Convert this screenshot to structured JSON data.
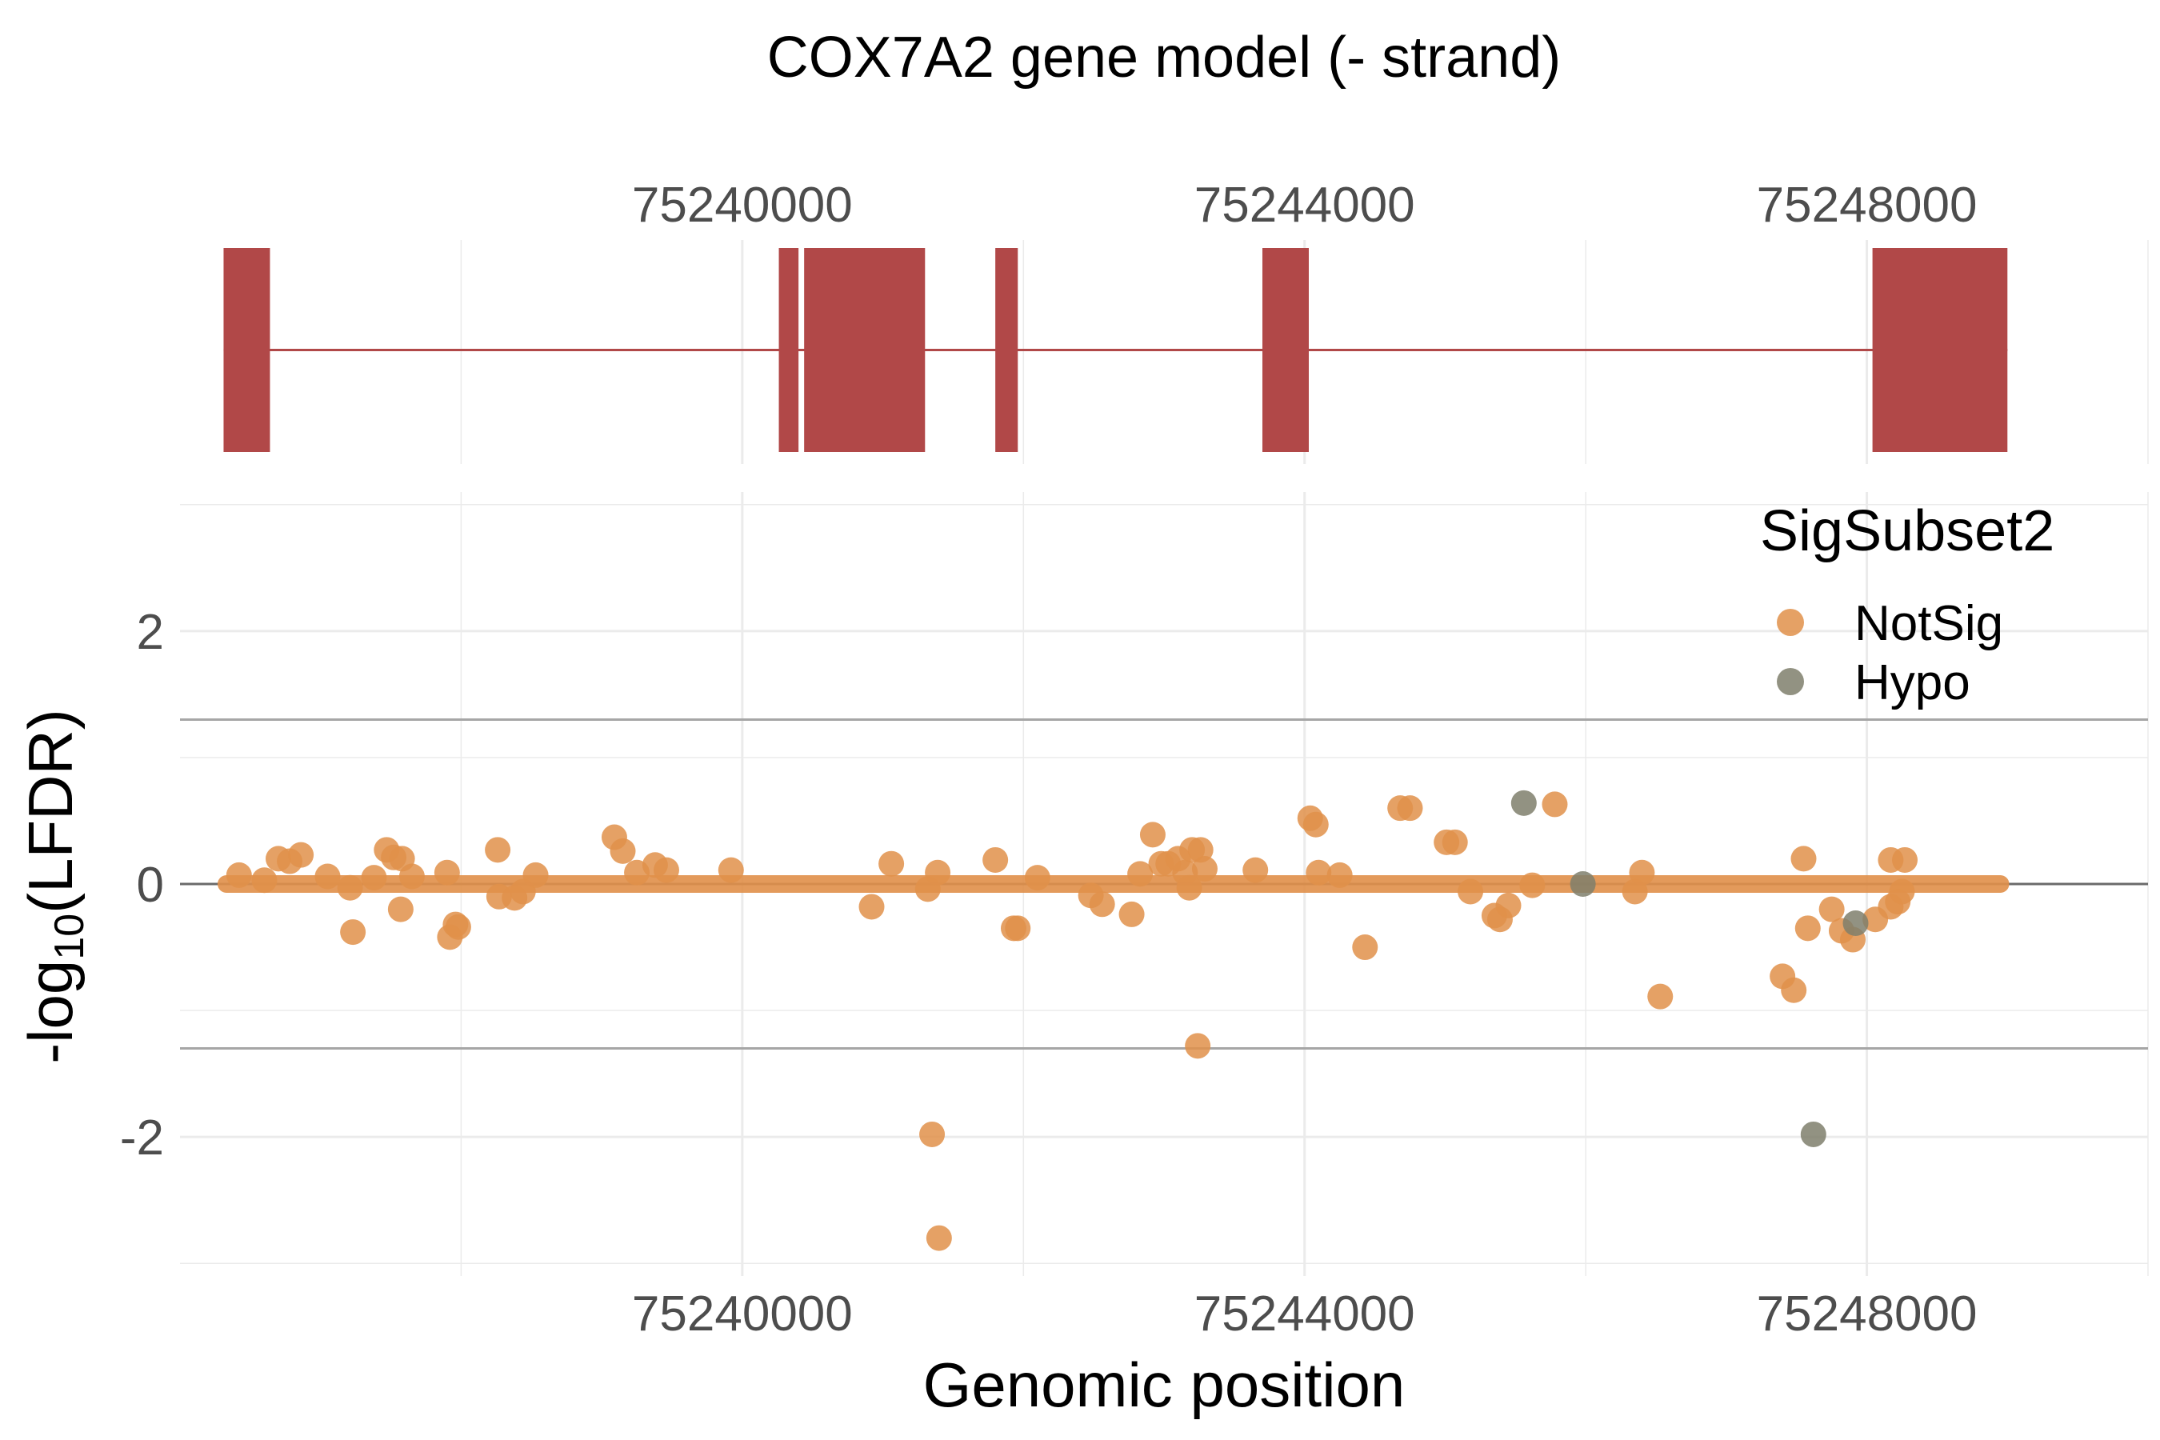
{
  "chart_data": {
    "type": "scatter",
    "title": "COX7A2 gene model (- strand)",
    "xlabel": "Genomic position",
    "ylabel": "-log10(LFDR)",
    "ylabel_parts": {
      "prefix": "-log",
      "sub": "10",
      "suffix": "(LFDR)"
    },
    "xlim": [
      75236000,
      75250000
    ],
    "ylim": [
      -3.1,
      3.1
    ],
    "x_ticks": [
      75240000,
      75244000,
      75248000
    ],
    "x_tick_labels": [
      "75240000",
      "75244000",
      "75248000"
    ],
    "y_ticks": [
      -2,
      0,
      2
    ],
    "y_tick_labels": [
      "-2",
      "0",
      "2"
    ],
    "threshold_lines": [
      1.3,
      -1.3
    ],
    "gene_model": {
      "strand": "-",
      "intron_span": [
        75236310,
        75249000
      ],
      "exons": [
        [
          75236310,
          75236640
        ],
        [
          75240260,
          75240400
        ],
        [
          75240440,
          75241300
        ],
        [
          75241800,
          75241960
        ],
        [
          75243700,
          75244030
        ],
        [
          75248040,
          75249000
        ]
      ]
    },
    "legend": {
      "title": "SigSubset2",
      "items": [
        {
          "label": "NotSig",
          "color": "#e1904a"
        },
        {
          "label": "Hypo",
          "color": "#7f7f6c"
        }
      ]
    },
    "baseline_band": {
      "x_range": [
        75236330,
        75248950
      ],
      "y": 0
    },
    "series": [
      {
        "name": "NotSig",
        "color": "#e1904a",
        "points": [
          [
            75236420,
            0.07
          ],
          [
            75236600,
            0.03
          ],
          [
            75236700,
            0.2
          ],
          [
            75236780,
            0.18
          ],
          [
            75236860,
            0.23
          ],
          [
            75237050,
            0.06
          ],
          [
            75237210,
            -0.03
          ],
          [
            75237230,
            -0.38
          ],
          [
            75237380,
            0.05
          ],
          [
            75237470,
            0.27
          ],
          [
            75237520,
            0.21
          ],
          [
            75237580,
            0.2
          ],
          [
            75237570,
            -0.2
          ],
          [
            75237650,
            0.06
          ],
          [
            75237900,
            0.09
          ],
          [
            75237920,
            -0.42
          ],
          [
            75237960,
            -0.32
          ],
          [
            75237980,
            -0.34
          ],
          [
            75238260,
            0.27
          ],
          [
            75238270,
            -0.1
          ],
          [
            75238380,
            -0.11
          ],
          [
            75238440,
            -0.06
          ],
          [
            75238530,
            0.07
          ],
          [
            75239090,
            0.37
          ],
          [
            75239150,
            0.26
          ],
          [
            75239250,
            0.09
          ],
          [
            75239380,
            0.15
          ],
          [
            75239460,
            0.11
          ],
          [
            75239920,
            0.11
          ],
          [
            75240920,
            -0.18
          ],
          [
            75241060,
            0.16
          ],
          [
            75241350,
            -1.98
          ],
          [
            75241320,
            -0.04
          ],
          [
            75241390,
            0.09
          ],
          [
            75241400,
            -2.8
          ],
          [
            75241800,
            0.19
          ],
          [
            75241930,
            -0.35
          ],
          [
            75241960,
            -0.35
          ],
          [
            75242100,
            0.05
          ],
          [
            75242480,
            -0.09
          ],
          [
            75242560,
            -0.16
          ],
          [
            75242770,
            -0.24
          ],
          [
            75242830,
            0.08
          ],
          [
            75242920,
            0.39
          ],
          [
            75242980,
            0.16
          ],
          [
            75243030,
            0.16
          ],
          [
            75243100,
            0.2
          ],
          [
            75243150,
            0.09
          ],
          [
            75243180,
            -0.03
          ],
          [
            75243200,
            0.27
          ],
          [
            75243260,
            0.27
          ],
          [
            75243240,
            -1.28
          ],
          [
            75243290,
            0.12
          ],
          [
            75243650,
            0.11
          ],
          [
            75244040,
            0.52
          ],
          [
            75244080,
            0.47
          ],
          [
            75244100,
            0.09
          ],
          [
            75244250,
            0.07
          ],
          [
            75244430,
            -0.5
          ],
          [
            75244680,
            0.6
          ],
          [
            75244750,
            0.6
          ],
          [
            75245010,
            0.33
          ],
          [
            75245070,
            0.33
          ],
          [
            75245180,
            -0.06
          ],
          [
            75245350,
            -0.25
          ],
          [
            75245390,
            -0.28
          ],
          [
            75245450,
            -0.17
          ],
          [
            75245620,
            -0.01
          ],
          [
            75245780,
            0.63
          ],
          [
            75246350,
            -0.06
          ],
          [
            75246400,
            0.09
          ],
          [
            75246530,
            -0.89
          ],
          [
            75247550,
            0.2
          ],
          [
            75247400,
            -0.73
          ],
          [
            75247480,
            -0.84
          ],
          [
            75247580,
            -0.35
          ],
          [
            75247750,
            -0.2
          ],
          [
            75247820,
            -0.37
          ],
          [
            75247900,
            -0.44
          ],
          [
            75248060,
            -0.28
          ],
          [
            75248170,
            -0.18
          ],
          [
            75248220,
            -0.14
          ],
          [
            75248250,
            -0.06
          ],
          [
            75248170,
            0.19
          ],
          [
            75248270,
            0.19
          ]
        ]
      },
      {
        "name": "Hypo",
        "color": "#7f7f6c",
        "points": [
          [
            75245560,
            0.64
          ],
          [
            75245980,
            0.0
          ],
          [
            75247620,
            -1.98
          ],
          [
            75247920,
            -0.31
          ]
        ]
      }
    ]
  }
}
